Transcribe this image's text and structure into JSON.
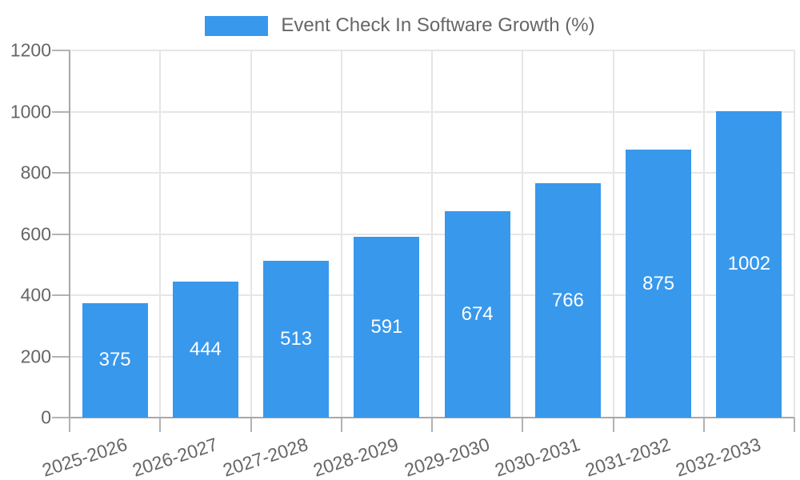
{
  "legend": {
    "label": "Event Check In Software Growth (%)"
  },
  "chart_data": {
    "type": "bar",
    "title": "Event Check In Software Growth (%)",
    "categories": [
      "2025-2026",
      "2026-2027",
      "2027-2028",
      "2028-2029",
      "2029-2030",
      "2030-2031",
      "2031-2032",
      "2032-2033"
    ],
    "values": [
      375,
      444,
      513,
      591,
      674,
      766,
      875,
      1002
    ],
    "xlabel": "",
    "ylabel": "",
    "ylim": [
      0,
      1200
    ],
    "yticks": [
      0,
      200,
      400,
      600,
      800,
      1000,
      1200
    ],
    "grid": true,
    "legend_position": "top",
    "bar_color": "#3898EC",
    "value_label_color": "#ffffff",
    "axis_text_color": "#666666",
    "grid_color": "#e6e6e6",
    "axis_line_color": "#a8a8a8"
  }
}
